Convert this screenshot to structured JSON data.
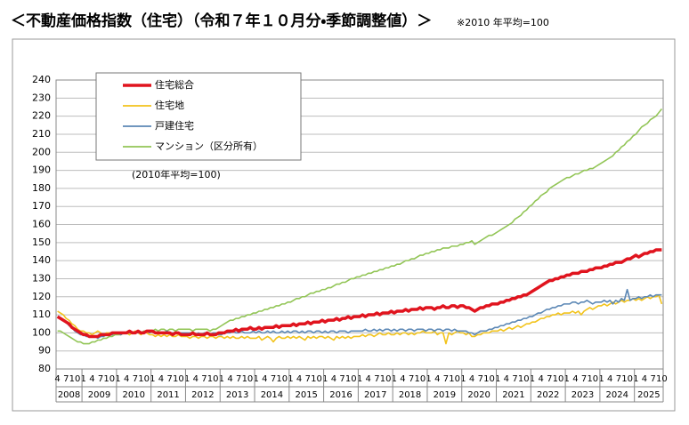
{
  "header": {
    "title": "＜不動産価格指数（住宅）（令和７年１０月分・季節調整値）＞",
    "note": "※2010 年平均=100"
  },
  "chart_data": {
    "type": "line",
    "annotation": "(2010年平均=100)",
    "categories": [
      "4",
      null,
      null,
      "7",
      null,
      null,
      "10",
      null,
      null,
      "1",
      null,
      null,
      "4",
      null,
      null,
      "7",
      null,
      null,
      "10",
      null,
      null,
      "1",
      null,
      null,
      "4",
      null,
      null,
      "7",
      null,
      null,
      "10",
      null,
      null,
      "1",
      null,
      null,
      "4",
      null,
      null,
      "7",
      null,
      null,
      "10",
      null,
      null,
      "1",
      null,
      null,
      "4",
      null,
      null,
      "7",
      null,
      null,
      "10",
      null,
      null,
      "1",
      null,
      null,
      "4",
      null,
      null,
      "7",
      null,
      null,
      "10",
      null,
      null,
      "1",
      null,
      null,
      "4",
      null,
      null,
      "7",
      null,
      null,
      "10",
      null,
      null,
      "1",
      null,
      null,
      "4",
      null,
      null,
      "7",
      null,
      null,
      "10",
      null,
      null,
      "1",
      null,
      null,
      "4",
      null,
      null,
      "7",
      null,
      null,
      "10",
      null,
      null,
      "1",
      null,
      null,
      "4",
      null,
      null,
      "7",
      null,
      null,
      "10",
      null,
      null,
      "1",
      null,
      null,
      "4",
      null,
      null,
      "7",
      null,
      null,
      "10",
      null,
      null,
      "1",
      null,
      null,
      "4",
      null,
      null,
      "7",
      null,
      null,
      "10",
      null,
      null,
      "1",
      null,
      null,
      "4",
      null,
      null,
      "7",
      null,
      null,
      "10",
      null,
      null,
      "1",
      null,
      null,
      "4",
      null,
      null,
      "7",
      null,
      null,
      "10",
      null,
      null,
      "1",
      null,
      null,
      "4",
      null,
      null,
      "7",
      null,
      null,
      "10",
      null,
      null,
      "1",
      null,
      null,
      "4",
      null,
      null,
      "7",
      null,
      null,
      "10",
      null,
      null,
      "1",
      null,
      null,
      "4",
      null,
      null,
      "7",
      null,
      null,
      "10",
      null,
      null,
      "1",
      null,
      null,
      "4",
      null,
      null,
      "7",
      null,
      null,
      "10"
    ],
    "year_labels": [
      "2008",
      "2009",
      "2010",
      "2011",
      "2012",
      "2013",
      "2014",
      "2015",
      "2016",
      "2017",
      "2018",
      "2019",
      "2020",
      "2021",
      "2022",
      "2023",
      "2024",
      "2025"
    ],
    "ylim": [
      80,
      240
    ],
    "yticks": [
      80,
      90,
      100,
      110,
      120,
      130,
      140,
      150,
      160,
      170,
      180,
      190,
      200,
      210,
      220,
      230,
      240
    ],
    "grid": true,
    "series": [
      {
        "name": "住宅総合",
        "color": "#e0141e",
        "values": [
          109,
          108,
          107,
          106,
          105,
          103,
          102,
          101,
          100,
          99,
          99,
          98,
          98,
          98,
          98,
          99,
          99,
          99,
          99,
          100,
          100,
          100,
          100,
          100,
          100,
          101,
          100,
          100,
          101,
          100,
          100,
          101,
          101,
          101,
          100,
          100,
          100,
          100,
          100,
          100,
          99,
          100,
          100,
          99,
          99,
          99,
          99,
          100,
          99,
          99,
          99,
          99,
          100,
          99,
          99,
          99,
          100,
          100,
          100,
          101,
          101,
          101,
          102,
          101,
          102,
          102,
          102,
          103,
          102,
          102,
          103,
          102,
          103,
          103,
          103,
          103,
          104,
          103,
          104,
          104,
          104,
          104,
          105,
          104,
          105,
          105,
          105,
          106,
          105,
          106,
          106,
          106,
          107,
          106,
          107,
          107,
          107,
          108,
          107,
          108,
          108,
          109,
          108,
          109,
          109,
          109,
          110,
          109,
          110,
          110,
          110,
          111,
          110,
          111,
          111,
          111,
          112,
          111,
          112,
          112,
          112,
          113,
          112,
          113,
          113,
          113,
          114,
          113,
          114,
          114,
          114,
          113,
          114,
          114,
          115,
          114,
          114,
          115,
          115,
          114,
          115,
          115,
          114,
          114,
          113,
          112,
          113,
          114,
          114,
          115,
          115,
          116,
          116,
          116,
          117,
          117,
          118,
          118,
          119,
          119,
          120,
          120,
          121,
          121,
          122,
          123,
          124,
          125,
          126,
          127,
          128,
          129,
          129,
          130,
          130,
          131,
          131,
          132,
          132,
          133,
          133,
          133,
          134,
          134,
          134,
          135,
          135,
          136,
          136,
          136,
          137,
          137,
          138,
          138,
          139,
          139,
          139,
          140,
          141,
          141,
          142,
          143,
          142,
          143,
          144,
          144,
          145,
          145,
          146,
          146,
          146
        ]
      },
      {
        "name": "住宅地",
        "color": "#f2c31b",
        "values": [
          112,
          111,
          110,
          108,
          107,
          105,
          104,
          102,
          101,
          101,
          100,
          100,
          99,
          100,
          101,
          100,
          99,
          100,
          100,
          99,
          100,
          100,
          99,
          100,
          100,
          99,
          100,
          101,
          100,
          99,
          100,
          100,
          99,
          99,
          98,
          99,
          98,
          99,
          98,
          99,
          98,
          98,
          99,
          98,
          98,
          98,
          97,
          98,
          98,
          97,
          98,
          98,
          97,
          98,
          98,
          97,
          98,
          98,
          97,
          98,
          97,
          98,
          97,
          97,
          98,
          97,
          98,
          97,
          97,
          97,
          98,
          96,
          97,
          98,
          97,
          95,
          97,
          98,
          97,
          97,
          98,
          97,
          98,
          97,
          98,
          97,
          96,
          98,
          97,
          98,
          97,
          98,
          98,
          97,
          98,
          97,
          96,
          98,
          97,
          98,
          97,
          98,
          97,
          98,
          98,
          98,
          99,
          98,
          99,
          99,
          98,
          99,
          100,
          99,
          99,
          100,
          99,
          99,
          100,
          99,
          100,
          100,
          99,
          100,
          99,
          100,
          100,
          101,
          100,
          100,
          100,
          101,
          99,
          100,
          100,
          94,
          100,
          99,
          100,
          101,
          100,
          100,
          99,
          100,
          98,
          98,
          99,
          99,
          100,
          100,
          100,
          101,
          101,
          101,
          102,
          101,
          102,
          103,
          102,
          103,
          104,
          103,
          104,
          105,
          105,
          106,
          106,
          107,
          108,
          108,
          109,
          109,
          110,
          110,
          111,
          110,
          111,
          111,
          111,
          112,
          111,
          112,
          110,
          112,
          113,
          114,
          113,
          114,
          115,
          115,
          116,
          115,
          116,
          117,
          116,
          117,
          118,
          117,
          118,
          118,
          119,
          118,
          119,
          118,
          119,
          120,
          119,
          120,
          120,
          121,
          116
        ]
      },
      {
        "name": "戸建住宅",
        "color": "#5b87b5",
        "values": [
          109,
          108,
          107,
          106,
          104,
          103,
          101,
          100,
          99,
          99,
          98,
          98,
          98,
          98,
          97,
          98,
          98,
          99,
          99,
          99,
          100,
          100,
          99,
          100,
          100,
          100,
          100,
          100,
          100,
          100,
          100,
          101,
          100,
          101,
          100,
          100,
          100,
          100,
          101,
          100,
          100,
          100,
          100,
          100,
          100,
          100,
          100,
          100,
          99,
          100,
          99,
          100,
          100,
          99,
          100,
          100,
          99,
          99,
          100,
          100,
          100,
          101,
          100,
          100,
          101,
          100,
          100,
          100,
          101,
          100,
          101,
          100,
          100,
          101,
          100,
          101,
          100,
          100,
          101,
          100,
          101,
          100,
          101,
          101,
          100,
          101,
          100,
          101,
          101,
          100,
          101,
          101,
          100,
          101,
          100,
          101,
          101,
          100,
          101,
          101,
          101,
          100,
          101,
          101,
          101,
          101,
          101,
          102,
          101,
          101,
          102,
          101,
          102,
          101,
          102,
          102,
          101,
          102,
          101,
          102,
          102,
          101,
          102,
          102,
          101,
          102,
          102,
          102,
          101,
          102,
          102,
          101,
          102,
          102,
          101,
          102,
          102,
          101,
          102,
          101,
          101,
          101,
          101,
          100,
          100,
          99,
          100,
          101,
          101,
          101,
          102,
          102,
          103,
          103,
          104,
          104,
          105,
          105,
          106,
          106,
          107,
          107,
          108,
          108,
          109,
          109,
          110,
          111,
          111,
          112,
          113,
          113,
          114,
          114,
          115,
          115,
          116,
          116,
          116,
          117,
          117,
          116,
          117,
          117,
          118,
          117,
          116,
          117,
          117,
          117,
          118,
          117,
          118,
          116,
          118,
          117,
          119,
          118,
          124,
          118,
          119,
          119,
          120,
          119,
          120,
          120,
          121,
          120,
          121,
          121,
          121
        ]
      },
      {
        "name": "マンション（区分所有）",
        "color": "#92c556",
        "values": [
          101,
          101,
          100,
          99,
          98,
          97,
          96,
          95,
          95,
          94,
          94,
          94,
          95,
          95,
          96,
          96,
          97,
          97,
          98,
          98,
          99,
          99,
          99,
          100,
          100,
          99,
          100,
          100,
          101,
          100,
          101,
          101,
          101,
          101,
          102,
          101,
          102,
          102,
          101,
          102,
          102,
          101,
          102,
          102,
          102,
          102,
          102,
          101,
          102,
          102,
          102,
          102,
          102,
          101,
          102,
          102,
          103,
          104,
          105,
          106,
          107,
          107,
          108,
          108,
          109,
          109,
          110,
          110,
          111,
          111,
          112,
          112,
          113,
          113,
          114,
          114,
          115,
          115,
          116,
          116,
          117,
          117,
          118,
          119,
          119,
          120,
          120,
          121,
          122,
          122,
          123,
          123,
          124,
          124,
          125,
          125,
          126,
          127,
          127,
          128,
          128,
          129,
          130,
          130,
          131,
          131,
          132,
          132,
          133,
          133,
          134,
          134,
          135,
          135,
          136,
          136,
          137,
          137,
          138,
          138,
          139,
          140,
          140,
          141,
          141,
          142,
          143,
          143,
          144,
          144,
          145,
          145,
          146,
          146,
          147,
          147,
          147,
          148,
          148,
          148,
          149,
          149,
          150,
          150,
          151,
          149,
          150,
          151,
          152,
          153,
          154,
          154,
          155,
          156,
          157,
          158,
          159,
          160,
          161,
          163,
          164,
          165,
          167,
          168,
          170,
          171,
          173,
          174,
          176,
          177,
          178,
          180,
          181,
          182,
          183,
          184,
          185,
          186,
          186,
          187,
          188,
          188,
          189,
          190,
          190,
          191,
          191,
          192,
          193,
          194,
          195,
          196,
          197,
          198,
          200,
          201,
          203,
          204,
          206,
          207,
          209,
          210,
          212,
          214,
          215,
          216,
          218,
          219,
          220,
          222,
          224
        ]
      }
    ]
  }
}
